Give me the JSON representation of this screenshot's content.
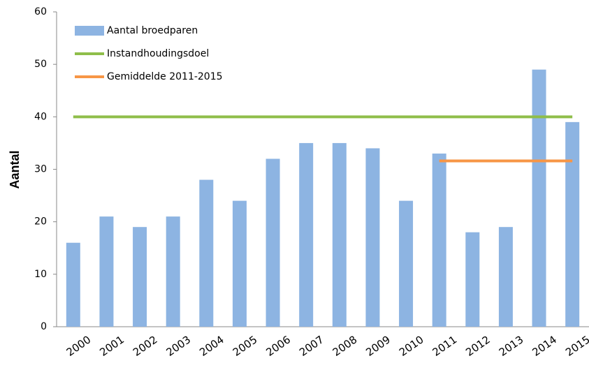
{
  "chart_data": {
    "type": "bar",
    "y_label": "Aantal",
    "categories": [
      "2000",
      "2001",
      "2002",
      "2003",
      "2004",
      "2005",
      "2006",
      "2007",
      "2008",
      "2009",
      "2010",
      "2011",
      "2012",
      "2013",
      "2014",
      "2015"
    ],
    "series": [
      {
        "name": "Aantal broedparen",
        "type": "bar",
        "color": "#8db4e2",
        "values": [
          16,
          21,
          19,
          21,
          28,
          24,
          32,
          35,
          35,
          34,
          24,
          33,
          18,
          19,
          49,
          39
        ]
      },
      {
        "name": "Instandhoudingsdoel",
        "type": "line",
        "color": "#8fbe4a",
        "values": [
          40,
          40,
          40,
          40,
          40,
          40,
          40,
          40,
          40,
          40,
          40,
          40,
          40,
          40,
          40,
          40
        ]
      },
      {
        "name": "Gemiddelde 2011-2015",
        "type": "line",
        "color": "#f79646",
        "values": [
          null,
          null,
          null,
          null,
          null,
          null,
          null,
          null,
          null,
          null,
          null,
          31.6,
          31.6,
          31.6,
          31.6,
          31.6
        ]
      }
    ],
    "ylim": [
      0,
      60
    ],
    "yticks": [
      0,
      10,
      20,
      30,
      40,
      50,
      60
    ],
    "grid": false,
    "legend": "top-left"
  }
}
